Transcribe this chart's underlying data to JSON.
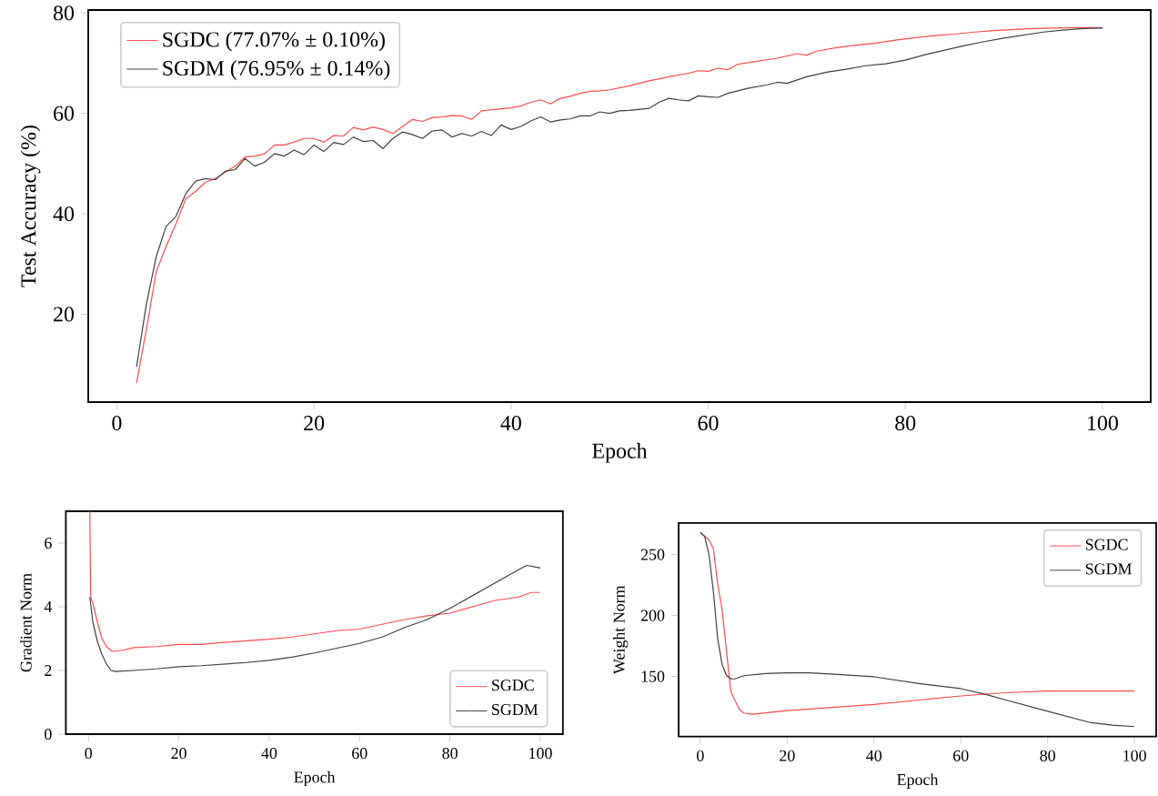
{
  "chart_data": [
    {
      "type": "line",
      "xlabel": "Epoch",
      "ylabel": "Test Accuracy (%)",
      "xlim": [
        -2.9,
        104.9
      ],
      "ylim": [
        2.5,
        80.6
      ],
      "xticks": [
        0,
        20,
        40,
        60,
        80,
        100
      ],
      "yticks": [
        20,
        40,
        60,
        80
      ],
      "legend": "top left",
      "marker": "none",
      "line_style": "solid",
      "grid": false,
      "series": [
        {
          "name": "SGDC (77.07% ± 0.10%)",
          "color": "#ff4d4d",
          "x": [
            2,
            3,
            4,
            5,
            6,
            7,
            8,
            9,
            10,
            11,
            12,
            13,
            14,
            15,
            16,
            17,
            18,
            19,
            20,
            21,
            22,
            23,
            24,
            25,
            26,
            27,
            28,
            29,
            30,
            31,
            32,
            33,
            34,
            35,
            36,
            37,
            38,
            39,
            40,
            41,
            42,
            43,
            44,
            45,
            46,
            47,
            48,
            49,
            50,
            52,
            54,
            56,
            58,
            59,
            60,
            61,
            62,
            63,
            65,
            67,
            69,
            70,
            71,
            73,
            75,
            77,
            79,
            81,
            83,
            85,
            87,
            89,
            91,
            93,
            95,
            97,
            100
          ],
          "values": [
            6.3,
            17,
            28.5,
            33.5,
            38,
            43,
            44.5,
            46.3,
            47,
            48.3,
            49.5,
            51.3,
            51.5,
            52,
            53.7,
            53.7,
            54.3,
            55,
            55,
            54.3,
            55.6,
            55.5,
            57.2,
            56.7,
            57.3,
            56.8,
            56,
            57.4,
            58.8,
            58.4,
            59.2,
            59.3,
            59.6,
            59.5,
            58.8,
            60.5,
            60.7,
            60.9,
            61.1,
            61.5,
            62.2,
            62.7,
            61.9,
            63,
            63.4,
            64,
            64.4,
            64.5,
            64.7,
            65.5,
            66.5,
            67.3,
            68,
            68.5,
            68.4,
            69,
            68.7,
            69.8,
            70.4,
            71,
            71.9,
            71.6,
            72.4,
            73.1,
            73.6,
            74,
            74.6,
            75.1,
            75.5,
            75.8,
            76.2,
            76.5,
            76.7,
            76.9,
            77,
            77.1,
            77.1
          ]
        },
        {
          "name": "SGDM (76.95% ± 0.14%)",
          "color": "#404040",
          "x": [
            2,
            3,
            4,
            5,
            6,
            7,
            8,
            9,
            10,
            11,
            12,
            13,
            14,
            15,
            16,
            17,
            18,
            19,
            20,
            21,
            22,
            23,
            24,
            25,
            26,
            27,
            28,
            29,
            30,
            31,
            32,
            33,
            34,
            35,
            36,
            37,
            38,
            39,
            40,
            41,
            42,
            43,
            44,
            45,
            46,
            47,
            48,
            49,
            50,
            51,
            52,
            54,
            55,
            56,
            57,
            58,
            59,
            60,
            61,
            62,
            64,
            66,
            67,
            68,
            70,
            72,
            74,
            76,
            78,
            80,
            82,
            84,
            86,
            88,
            90,
            92,
            94,
            96,
            98,
            100
          ],
          "values": [
            9.5,
            22,
            31.5,
            37.5,
            39.5,
            44,
            46.5,
            47,
            46.8,
            48.5,
            48.8,
            51,
            49.5,
            50.3,
            52,
            51.5,
            52.7,
            51.8,
            53.7,
            52.4,
            54.2,
            53.8,
            55.3,
            54.4,
            54.6,
            53,
            55,
            56.3,
            55.8,
            55,
            56.5,
            56.7,
            55.3,
            56,
            55.5,
            56.4,
            55.6,
            57.7,
            56.8,
            57.4,
            58.5,
            59.3,
            58.3,
            58.7,
            58.9,
            59.5,
            59.5,
            60.3,
            60,
            60.5,
            60.6,
            61,
            62.2,
            63,
            62.7,
            62.5,
            63.5,
            63.3,
            63.2,
            64,
            65,
            65.7,
            66.2,
            66,
            67.3,
            68.2,
            68.8,
            69.5,
            69.9,
            70.6,
            71.7,
            72.6,
            73.5,
            74.3,
            75,
            75.6,
            76.2,
            76.6,
            76.9,
            77.0
          ]
        }
      ]
    },
    {
      "type": "line",
      "xlabel": "Epoch",
      "ylabel": "Gradient Norm",
      "xlim": [
        -5,
        105
      ],
      "ylim": [
        0,
        7
      ],
      "xticks": [
        0,
        20,
        40,
        60,
        80,
        100
      ],
      "yticks": [
        0,
        2,
        4,
        6
      ],
      "legend": "bottom right",
      "marker": "none",
      "line_style": "solid",
      "grid": false,
      "series": [
        {
          "name": "SGDC",
          "color": "#ff4d4d",
          "x": [
            0.3,
            0.5,
            1,
            2,
            3,
            4,
            5,
            6,
            8,
            10,
            15,
            20,
            25,
            30,
            35,
            40,
            45,
            50,
            55,
            60,
            65,
            70,
            75,
            80,
            85,
            90,
            95,
            98,
            100
          ],
          "values": [
            7,
            4.3,
            4.1,
            3.5,
            3.0,
            2.75,
            2.62,
            2.6,
            2.65,
            2.72,
            2.75,
            2.82,
            2.82,
            2.88,
            2.93,
            2.98,
            3.05,
            3.15,
            3.25,
            3.3,
            3.45,
            3.6,
            3.72,
            3.8,
            4.0,
            4.2,
            4.3,
            4.45,
            4.45
          ]
        },
        {
          "name": "SGDM",
          "color": "#404040",
          "x": [
            0.3,
            1,
            2,
            3,
            4,
            5,
            6,
            10,
            15,
            20,
            25,
            30,
            35,
            40,
            45,
            50,
            55,
            60,
            65,
            70,
            75,
            80,
            85,
            90,
            95,
            97,
            100
          ],
          "values": [
            4.3,
            3.5,
            2.9,
            2.5,
            2.2,
            2.0,
            1.97,
            2.0,
            2.05,
            2.12,
            2.15,
            2.2,
            2.25,
            2.32,
            2.42,
            2.55,
            2.7,
            2.85,
            3.05,
            3.35,
            3.6,
            3.95,
            4.35,
            4.75,
            5.15,
            5.3,
            5.22
          ]
        }
      ]
    },
    {
      "type": "line",
      "xlabel": "Epoch",
      "ylabel": "Weight Norm",
      "xlim": [
        -5,
        105
      ],
      "ylim": [
        100.7,
        276
      ],
      "xticks": [
        0,
        20,
        40,
        60,
        80,
        100
      ],
      "yticks": [
        150,
        200,
        250
      ],
      "legend": "top right",
      "marker": "none",
      "line_style": "solid",
      "grid": false,
      "series": [
        {
          "name": "SGDC",
          "color": "#ff4d4d",
          "x": [
            0,
            2,
            3,
            4,
            5,
            6,
            7,
            8,
            9,
            10,
            12,
            20,
            40,
            60,
            70,
            80,
            90,
            100
          ],
          "values": [
            268,
            262,
            255,
            226,
            205,
            172,
            138,
            130,
            123,
            120,
            119,
            122,
            127,
            134,
            136.6,
            138,
            138,
            138
          ]
        },
        {
          "name": "SGDM",
          "color": "#404040",
          "x": [
            0,
            1,
            2,
            3,
            4,
            5,
            6,
            7,
            8,
            10,
            15,
            20,
            25,
            30,
            40,
            50,
            60,
            66,
            70,
            80,
            90,
            95,
            100
          ],
          "values": [
            268,
            265,
            250,
            220,
            181,
            160,
            151,
            148,
            148,
            150.6,
            152.4,
            153,
            153,
            152,
            149.7,
            144.3,
            140,
            135,
            131,
            121.4,
            112,
            110,
            108.8
          ]
        }
      ]
    }
  ]
}
